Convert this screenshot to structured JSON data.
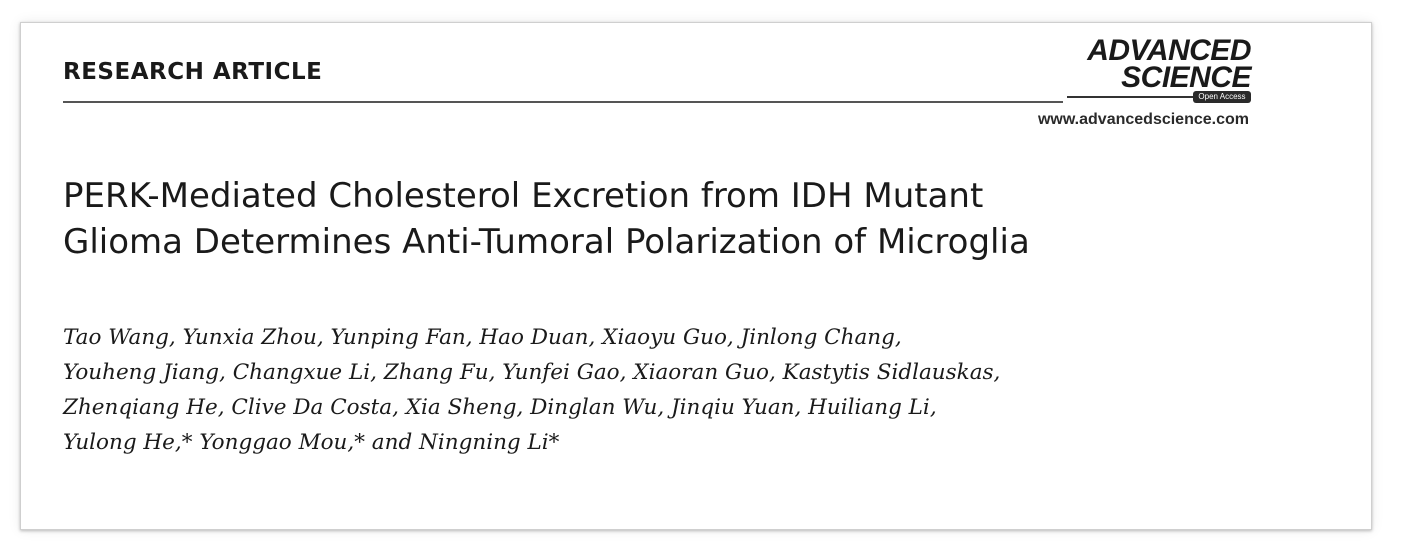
{
  "header": {
    "article_type": "RESEARCH ARTICLE",
    "journal_logo": {
      "line1": "ADVANCED",
      "line2": "SCIENCE",
      "badge": "Open Access"
    },
    "website": "www.advancedscience.com"
  },
  "article": {
    "title_lines": [
      "PERK-Mediated Cholesterol Excretion from IDH Mutant",
      "Glioma Determines Anti-Tumoral Polarization of Microglia"
    ],
    "author_lines": [
      "Tao Wang, Yunxia Zhou, Yunping Fan, Hao Duan, Xiaoyu Guo, Jinlong Chang,",
      "Youheng Jiang, Changxue Li, Zhang Fu, Yunfei Gao, Xiaoran Guo, Kastytis Sidlauskas,",
      "Zhenqiang He, Clive Da Costa, Xia Sheng, Dinglan Wu, Jinqiu Yuan, Huiliang Li,",
      "Yulong He,* Yonggao Mou,* and Ningning Li*"
    ]
  }
}
